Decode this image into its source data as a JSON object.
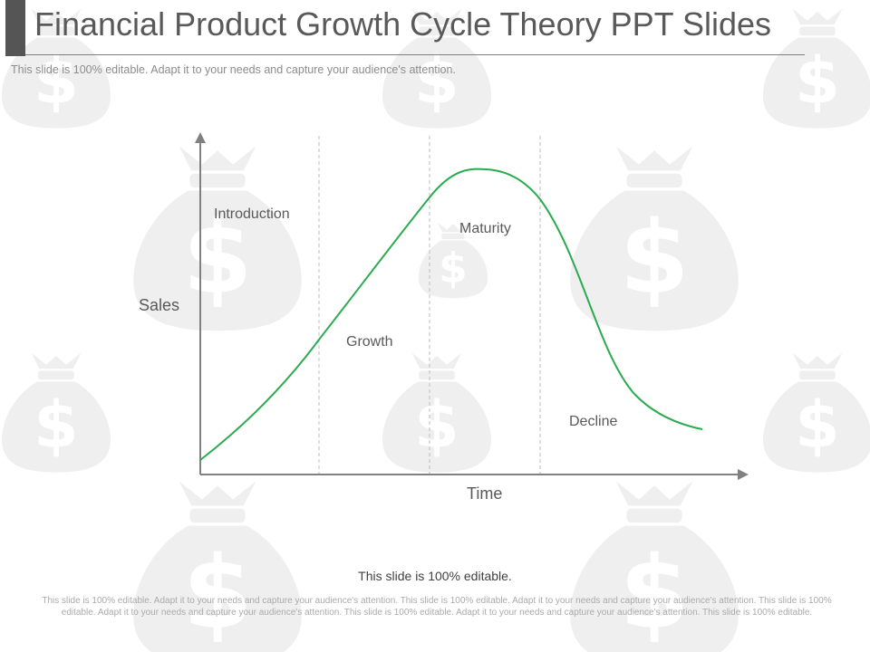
{
  "slide": {
    "title": "Financial Product Growth Cycle Theory PPT Slides",
    "subtitle": "This slide is 100% editable.  Adapt it to your needs and capture your audience's attention."
  },
  "diagram": {
    "y_axis_label": "Sales",
    "x_axis_label": "Time",
    "stages": [
      {
        "label": "Introduction"
      },
      {
        "label": "Growth"
      },
      {
        "label": "Maturity"
      },
      {
        "label": "Decline"
      }
    ],
    "curve_color": "#2bab4f",
    "axis_color": "#808080",
    "divider_color": "#bdbdbd"
  },
  "footer": {
    "editable_note": "This slide is 100% editable.",
    "body": "This slide is 100% editable. Adapt it to your needs and capture your audience's attention. This slide is 100% editable. Adapt it to your needs and capture your audience's attention. This slide is 100% editable. Adapt it to your needs and capture your audience's attention. This slide is 100% editable. Adapt it to your needs and capture your audience's attention. This slide is 100% editable."
  },
  "background": {
    "icon": "money-bag-icon",
    "color": "#efefef"
  }
}
